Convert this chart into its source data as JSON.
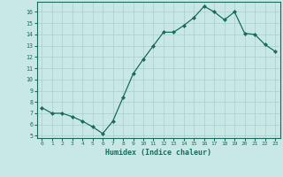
{
  "x": [
    0,
    1,
    2,
    3,
    4,
    5,
    6,
    7,
    8,
    9,
    10,
    11,
    12,
    13,
    14,
    15,
    16,
    17,
    18,
    19,
    20,
    21,
    22,
    23
  ],
  "y": [
    7.5,
    7.0,
    7.0,
    6.7,
    6.3,
    5.8,
    5.2,
    6.3,
    8.4,
    10.5,
    11.8,
    13.0,
    14.2,
    14.2,
    14.8,
    15.5,
    16.5,
    16.0,
    15.3,
    16.0,
    14.1,
    14.0,
    13.1,
    12.5
  ],
  "xlabel": "Humidex (Indice chaleur)",
  "xlim": [
    -0.5,
    23.5
  ],
  "ylim": [
    4.8,
    16.9
  ],
  "yticks": [
    5,
    6,
    7,
    8,
    9,
    10,
    11,
    12,
    13,
    14,
    15,
    16
  ],
  "xticks": [
    0,
    1,
    2,
    3,
    4,
    5,
    6,
    7,
    8,
    9,
    10,
    11,
    12,
    13,
    14,
    15,
    16,
    17,
    18,
    19,
    20,
    21,
    22,
    23
  ],
  "line_color": "#1a6b5e",
  "marker_color": "#1a6b5e",
  "bg_color": "#c8e8e5",
  "grid_color": "#aacfcc",
  "tick_color": "#1a6b5e",
  "label_color": "#1a6b5e",
  "spine_color": "#1a6b5e"
}
